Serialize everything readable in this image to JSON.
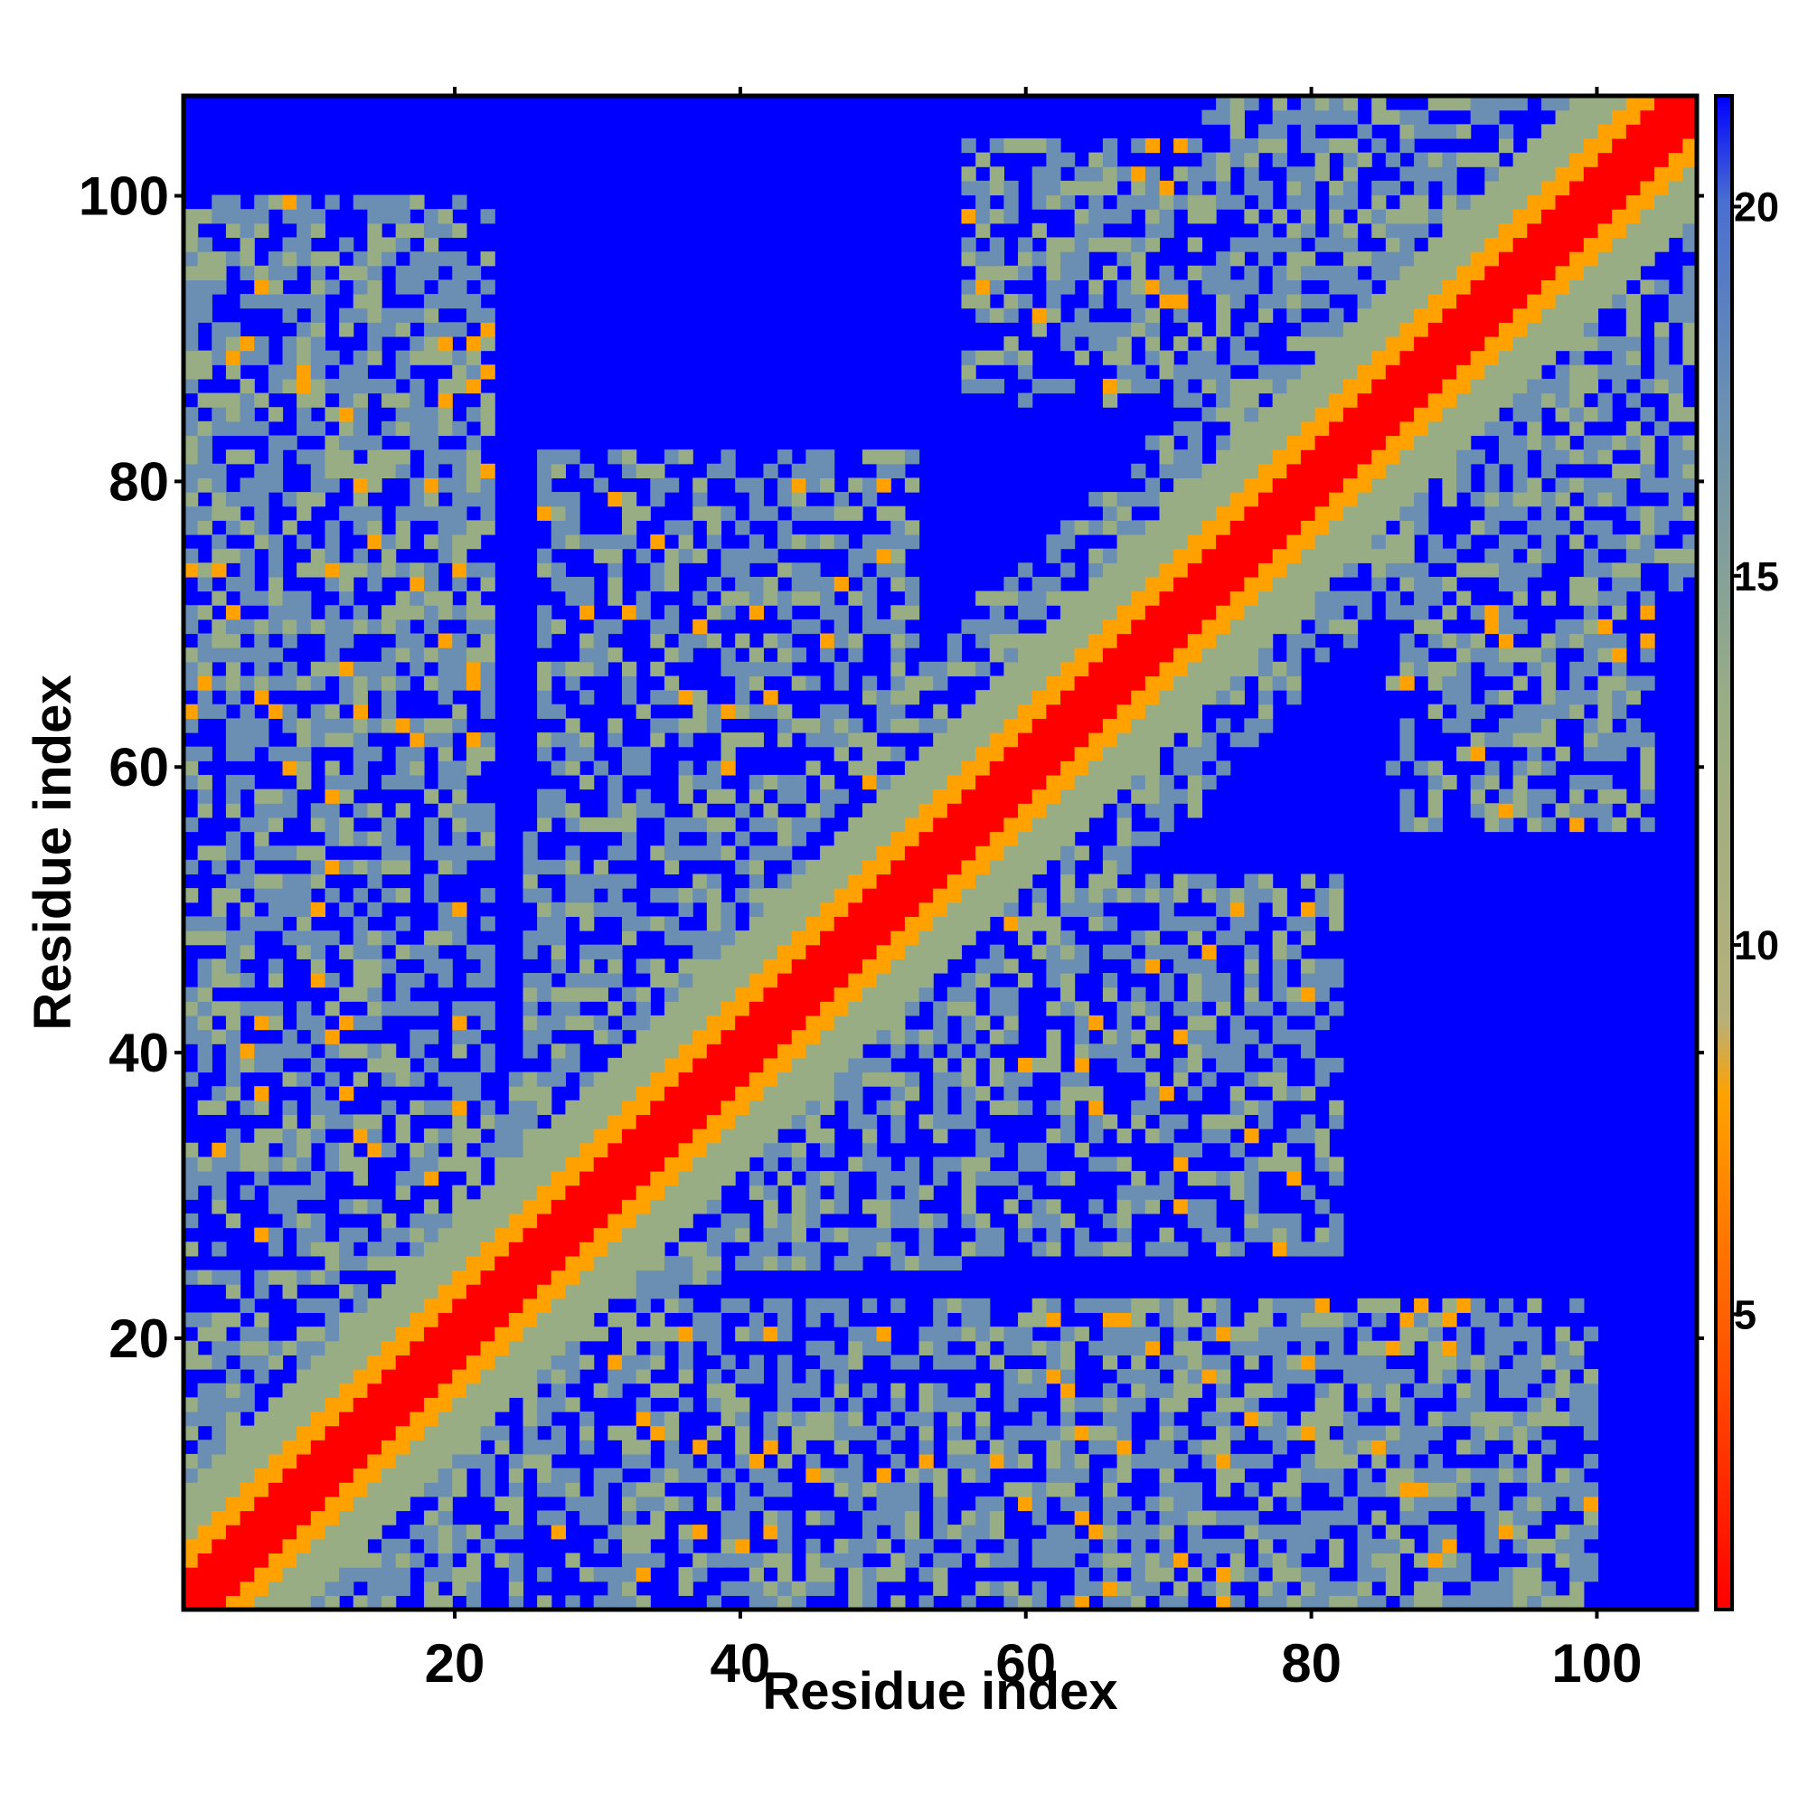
{
  "chart_data": {
    "type": "heatmap",
    "title": "",
    "xlabel": "Residue index",
    "ylabel": "Residue index",
    "n_residues": 107,
    "xlim": [
      1,
      107
    ],
    "ylim": [
      1,
      107
    ],
    "x_ticks": [
      20,
      40,
      60,
      80,
      100
    ],
    "y_ticks": [
      20,
      40,
      60,
      80,
      100
    ],
    "colorbar": {
      "placement": "right",
      "range": [
        1,
        21.5
      ],
      "ticks": [
        5,
        10,
        15,
        20
      ],
      "colors": {
        "near": "#ff0000",
        "mid": "#ffa200",
        "far": "#99ad85",
        "farther": "#6a8fb3",
        "max": "#0000ff"
      }
    },
    "description_values": {
      "diagonal_distance_min": 1,
      "cutoff_distance": 21.5
    }
  }
}
